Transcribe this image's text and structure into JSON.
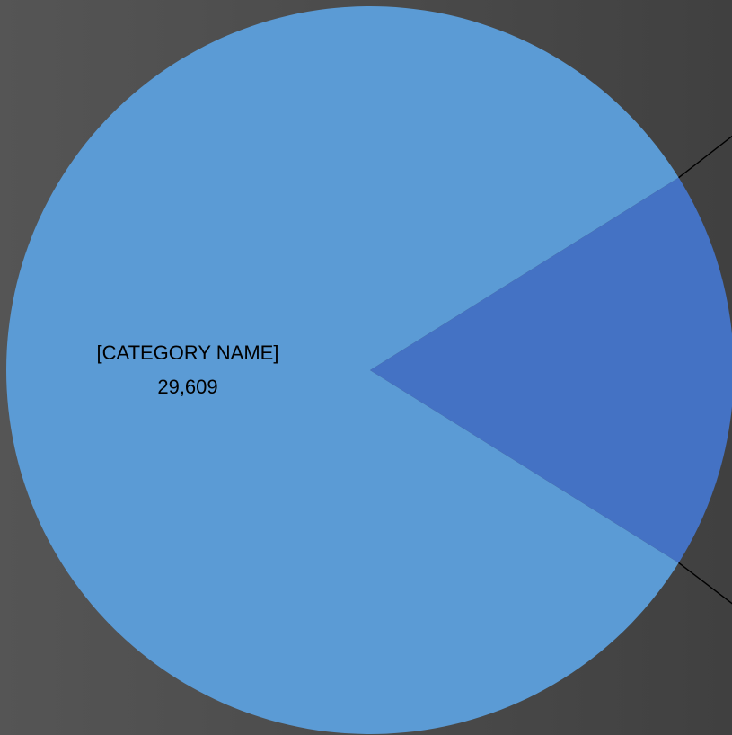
{
  "chart_data": {
    "type": "pie",
    "title": "",
    "slices": [
      {
        "label": "[CATEGORY NAME]",
        "value": 29609,
        "value_label": "29,609",
        "color": "#5b9bd5"
      },
      {
        "label": "",
        "value": 6391,
        "value_label": "",
        "color": "#4472c4"
      }
    ],
    "legend": "none"
  }
}
